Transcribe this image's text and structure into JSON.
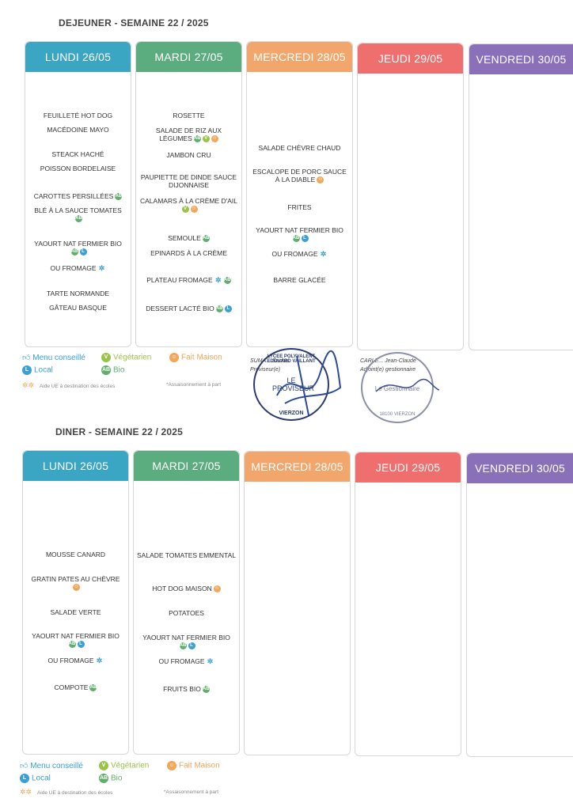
{
  "lunch": {
    "title": "DEJEUNER - SEMAINE 22 / 2025",
    "days": [
      {
        "label": "LUNDI 26/05",
        "color": "#3aa6c4"
      },
      {
        "label": "MARDI 27/05",
        "color": "#5bad80"
      },
      {
        "label": "MERCREDI 28/05",
        "color": "#f2a66b"
      },
      {
        "label": "JEUDI 29/05",
        "color": "#ef6e6e"
      },
      {
        "label": "VENDREDI 30/05",
        "color": "#8a70b8"
      }
    ],
    "monday": [
      "FEUILLETÉ HOT DOG",
      "MACÉDOINE MAYO",
      "STEACK HACHÉ",
      "POISSON BORDELAISE",
      "CAROTTES PERSILLÉES",
      "BLÉ À LA SAUCE TOMATES",
      "YAOURT NAT FERMIER BIO",
      "OU FROMAGE",
      "TARTE NORMANDE",
      "GÂTEAU BASQUE"
    ],
    "tuesday": [
      "ROSETTE",
      "SALADE DE RIZ AUX LÉGUMES",
      "JAMBON CRU",
      "PAUPIETTE DE DINDE SAUCE DIJONNAISE",
      "CALAMARS À LA CRÈME D'AIL",
      "SEMOULE",
      "EPINARDS À LA CRÈME",
      "PLATEAU FROMAGE",
      "DESSERT LACTÉ BIO"
    ],
    "wednesday": [
      "SALADE CHÈVRE CHAUD",
      "ESCALOPE DE PORC SAUCE À LA DIABLE",
      "FRITES",
      "YAOURT NAT FERMIER BIO",
      "OU FROMAGE",
      "BARRE GLACÉE"
    ]
  },
  "dinner": {
    "title": "DINER - SEMAINE 22 / 2025",
    "days": [
      {
        "label": "LUNDI 26/05",
        "color": "#3aa6c4"
      },
      {
        "label": "MARDI 27/05",
        "color": "#5bad80"
      },
      {
        "label": "MERCREDI 28/05",
        "color": "#f2a66b"
      },
      {
        "label": "JEUDI 29/05",
        "color": "#ef6e6e"
      },
      {
        "label": "VENDREDI 30/05",
        "color": "#8a70b8"
      }
    ],
    "monday": [
      "MOUSSE CANARD",
      "GRATIN PATES AU CHÈVRE",
      "SALADE VERTE",
      "YAOURT NAT FERMIER BIO",
      "OU FROMAGE",
      "COMPOTE"
    ],
    "tuesday": [
      "SALADE TOMATES EMMENTAL",
      "HOT DOG MAISON",
      "POTATOES",
      "YAOURT NAT FERMIER BIO",
      "OU FROMAGE",
      "FRUITS BIO"
    ]
  },
  "legend": {
    "menu_conseille": "Menu conseillé",
    "vegetarien": "Végétarien",
    "fait_maison": "Fait Maison",
    "local": "Local",
    "bio": "Bio",
    "aide_ue": "Aide UE à destination des écoles",
    "assaisonnement": "*Assaisonnement à part"
  },
  "signatures": {
    "left_name": "SUMA... Sacha",
    "left_role": "Proviseur(e)",
    "left_stamp_title": "LE PROVISEUR",
    "left_stamp_ring": "LYCEE POLYVALENT EDOUARD VAILLANT",
    "left_stamp_city": "VIERZON",
    "right_name": "CARLE... Jean-Claude",
    "right_role": "Adjoint(e) gestionnaire",
    "right_stamp_title": "Le Gestionnaire",
    "right_stamp_city": "18100 VIERZON"
  }
}
